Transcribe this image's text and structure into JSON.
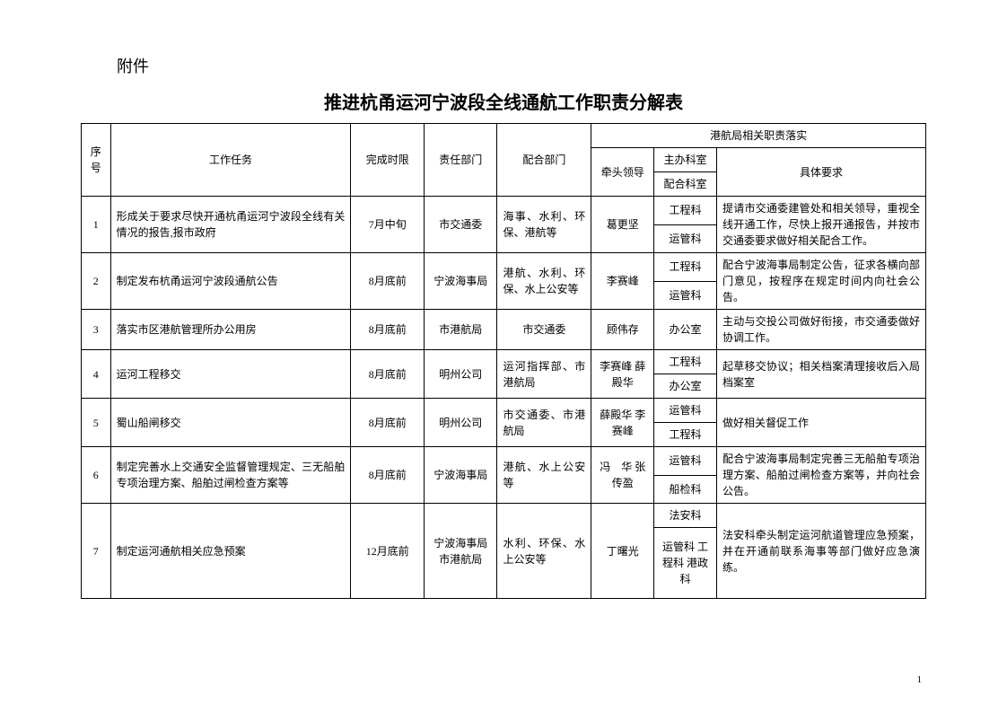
{
  "attachment_label": "附件",
  "title": "推进杭甬运河宁波段全线通航工作职责分解表",
  "headers": {
    "seq": "序号",
    "task": "工作任务",
    "deadline": "完成时限",
    "dept": "责任部门",
    "coop": "配合部门",
    "port_header": "港航局相关职责落实",
    "leader": "牵头领导",
    "main_office": "主办科室",
    "coop_office": "配合科室",
    "detail": "具体要求"
  },
  "rows": [
    {
      "seq": "1",
      "task": "形成关于要求尽快开通杭甬运河宁波段全线有关情况的报告,报市政府",
      "deadline": "7月中旬",
      "dept": "市交通委",
      "coop": "海事、水利、环保、港航等",
      "leader": "葛更坚",
      "main_office": "工程科",
      "coop_office": "运管科",
      "detail": "提请市交通委建管处和相关领导，重视全线开通工作，尽快上报开通报告，并按市交通委要求做好相关配合工作。"
    },
    {
      "seq": "2",
      "task": "制定发布杭甬运河宁波段通航公告",
      "deadline": "8月底前",
      "dept": "宁波海事局",
      "coop": "港航、水利、环保、水上公安等",
      "leader": "李赛峰",
      "main_office": "工程科",
      "coop_office": "运管科",
      "detail": "配合宁波海事局制定公告，征求各横向部门意见，按程序在规定时间内向社会公告。"
    },
    {
      "seq": "3",
      "task": "落实市区港航管理所办公用房",
      "deadline": "8月底前",
      "dept": "市港航局",
      "coop": "市交通委",
      "leader": "顾伟存",
      "main_office": "办公室",
      "detail": "主动与交投公司做好衔接，市交通委做好协调工作。"
    },
    {
      "seq": "4",
      "task": "运河工程移交",
      "deadline": "8月底前",
      "dept": "明州公司",
      "coop": "运河指挥部、市港航局",
      "leader": "李赛峰 薛殿华",
      "main_office": "工程科",
      "coop_office": "办公室",
      "detail": "起草移交协议；相关档案清理接收后入局档案室"
    },
    {
      "seq": "5",
      "task": "蜀山船闸移交",
      "deadline": "8月底前",
      "dept": "明州公司",
      "coop": "市交通委、市港航局",
      "leader": "薛殿华 李赛峰",
      "main_office": "运管科",
      "coop_office": "工程科",
      "detail": "做好相关督促工作"
    },
    {
      "seq": "6",
      "task": "制定完善水上交通安全监督管理规定、三无船舶专项治理方案、船舶过闸检查方案等",
      "deadline": "8月底前",
      "dept": "宁波海事局",
      "coop": "港航、水上公安等",
      "leader": "冯　华 张传盈",
      "main_office": "运管科",
      "coop_office": "船检科",
      "detail": "配合宁波海事局制定完善三无船舶专项治理方案、船舶过闸检查方案等，并向社会公告。"
    },
    {
      "seq": "7",
      "task": "制定运河通航相关应急预案",
      "deadline": "12月底前",
      "dept": "宁波海事局 市港航局",
      "coop": "水利、环保、水上公安等",
      "leader": "丁曙光",
      "main_office": "法安科",
      "coop_office": "运管科 工程科 港政科",
      "detail": "法安科牵头制定运河航道管理应急预案，并在开通前联系海事等部门做好应急演练。"
    }
  ],
  "page_number": "1"
}
